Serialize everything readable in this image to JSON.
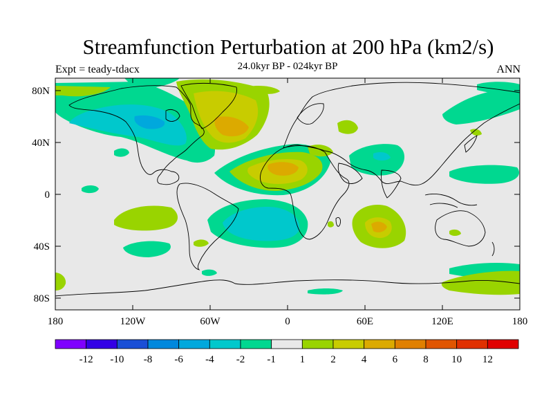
{
  "title": "Streamfunction Perturbation at 200 hPa (km2/s)",
  "left_label": "Expt = teady-tdacx",
  "center_label": "24.0kyr BP - 024kyr BP",
  "right_label": "ANN",
  "y_ticks": [
    "80N",
    "40N",
    "0",
    "40S",
    "80S"
  ],
  "x_ticks": [
    "180",
    "120W",
    "60W",
    "0",
    "60E",
    "120E",
    "180"
  ],
  "colorbar": {
    "colors": [
      "#7f00ff",
      "#3300e6",
      "#1a4fd6",
      "#0088dd",
      "#00a8dd",
      "#00c8cc",
      "#00d890",
      "#e8e8e8",
      "#99d400",
      "#c8cc00",
      "#dcaa00",
      "#e08000",
      "#e05500",
      "#e03000",
      "#e00000"
    ],
    "labels": [
      "-12",
      "-10",
      "-8",
      "-6",
      "-4",
      "-2",
      "-1",
      "1",
      "2",
      "4",
      "6",
      "8",
      "10",
      "12"
    ]
  },
  "palette": {
    "neutral": "#e8e8e8",
    "c_neg1": "#00d890",
    "c_neg2": "#00c8cc",
    "c_neg4": "#00a8dd",
    "c_pos1": "#99d400",
    "c_pos2": "#c8cc00",
    "c_pos4": "#dcaa00"
  }
}
